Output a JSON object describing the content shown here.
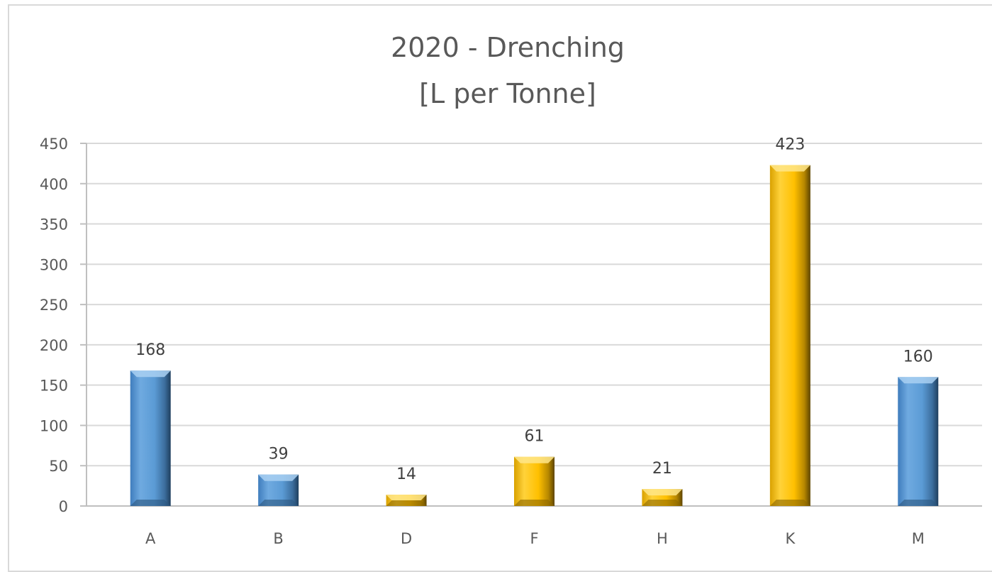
{
  "chart_data": {
    "type": "bar",
    "title": "2020 - Drenching",
    "subtitle": "[L per Tonne]",
    "xlabel": "",
    "ylabel": "",
    "categories": [
      "A",
      "B",
      "D",
      "F",
      "H",
      "K",
      "M"
    ],
    "values": [
      168,
      39,
      14,
      61,
      21,
      423,
      160
    ],
    "data_labels": [
      "168",
      "39",
      "14",
      "61",
      "21",
      "423",
      "160"
    ],
    "bar_colors": [
      "#5B9BD5",
      "#5B9BD5",
      "#FFC000",
      "#FFC000",
      "#FFC000",
      "#FFC000",
      "#5B9BD5"
    ],
    "ylim": [
      0,
      450
    ],
    "yticks": [
      "0",
      "50",
      "100",
      "150",
      "200",
      "250",
      "300",
      "350",
      "400",
      "450"
    ],
    "grid": true,
    "legend": "none"
  }
}
